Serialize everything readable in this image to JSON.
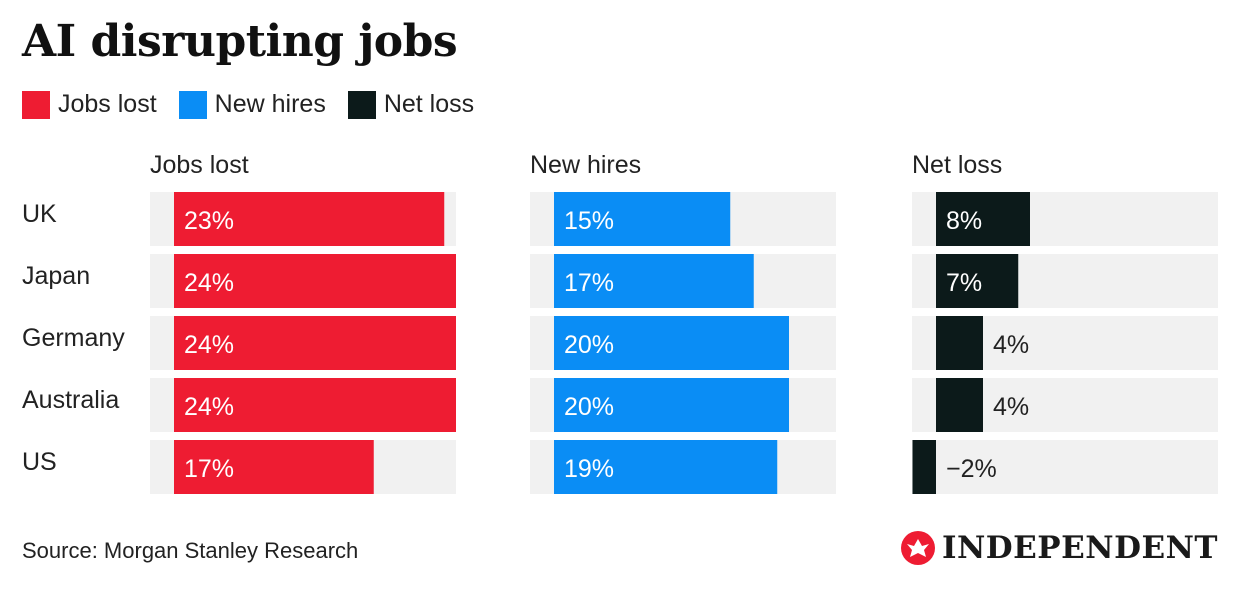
{
  "title": "AI disrupting jobs",
  "legend": [
    {
      "label": "Jobs lost",
      "color": "#ee1c32"
    },
    {
      "label": "New hires",
      "color": "#0a8df5"
    },
    {
      "label": "Net loss",
      "color": "#0c1a1a"
    }
  ],
  "source": "Source: Morgan Stanley Research",
  "brand": {
    "name": "INDEPENDENT",
    "logo_icon": "eagle-icon",
    "accent": "#ee1c32"
  },
  "colors": {
    "track": "#f1f1f1"
  },
  "chart_data": {
    "type": "bar",
    "orientation": "horizontal",
    "categories": [
      "UK",
      "Japan",
      "Germany",
      "Australia",
      "US"
    ],
    "value_suffix": "%",
    "panels": [
      {
        "name": "Jobs lost",
        "color": "#ee1c32",
        "values": [
          23,
          24,
          24,
          24,
          17
        ],
        "labels": [
          "23%",
          "24%",
          "24%",
          "24%",
          "17%"
        ],
        "xlim": [
          -2,
          24
        ]
      },
      {
        "name": "New hires",
        "color": "#0a8df5",
        "values": [
          15,
          17,
          20,
          20,
          19
        ],
        "labels": [
          "15%",
          "17%",
          "20%",
          "20%",
          "19%"
        ],
        "xlim": [
          -2,
          24
        ]
      },
      {
        "name": "Net loss",
        "color": "#0c1a1a",
        "values": [
          8,
          7,
          4,
          4,
          -2
        ],
        "labels": [
          "8%",
          "7%",
          "4%",
          "4%",
          "−2%"
        ],
        "xlim": [
          -2,
          24
        ]
      }
    ]
  }
}
